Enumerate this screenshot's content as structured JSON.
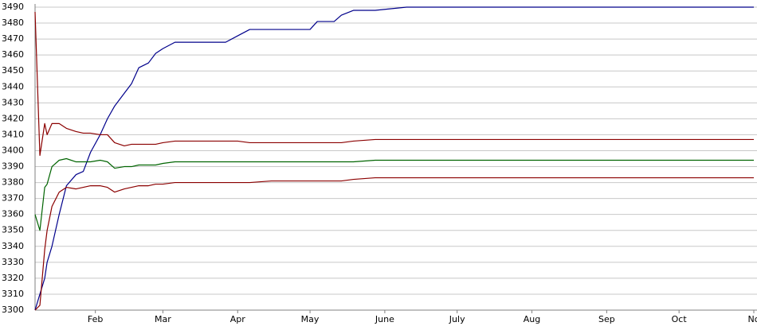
{
  "chart_data": {
    "type": "line",
    "x": [
      7,
      9,
      11,
      12,
      14,
      17,
      20,
      24,
      27,
      30,
      34,
      37,
      40,
      44,
      47,
      50,
      54,
      57,
      60,
      65,
      75,
      86,
      91,
      96,
      105,
      121,
      124,
      131,
      134,
      139,
      148,
      161,
      190,
      223,
      256,
      305
    ],
    "series": [
      {
        "color": "#00008b",
        "values": [
          3300,
          3310,
          3320,
          3330,
          3340,
          3360,
          3378,
          3385,
          3387,
          3399,
          3410,
          3420,
          3428,
          3436,
          3442,
          3452,
          3455,
          3461,
          3464,
          3468,
          3468,
          3468,
          3472,
          3476,
          3476,
          3476,
          3481,
          3481,
          3485,
          3488,
          3488,
          3490,
          3490,
          3490,
          3490,
          3490
        ]
      },
      {
        "color": "#8b0000",
        "values": [
          3487,
          3397,
          3417,
          3410,
          3417,
          3417,
          3414,
          3412,
          3411,
          3411,
          3410,
          3410,
          3405,
          3403,
          3404,
          3404,
          3404,
          3404,
          3405,
          3406,
          3406,
          3406,
          3406,
          3405,
          3405,
          3405,
          3405,
          3405,
          3405,
          3406,
          3407,
          3407,
          3407,
          3407,
          3407,
          3407
        ]
      },
      {
        "color": "#006400",
        "values": [
          3360,
          3350,
          3377,
          3379,
          3390,
          3394,
          3395,
          3393,
          3393,
          3393,
          3394,
          3393,
          3389,
          3390,
          3390,
          3391,
          3391,
          3391,
          3392,
          3393,
          3393,
          3393,
          3393,
          3393,
          3393,
          3393,
          3393,
          3393,
          3393,
          3393,
          3394,
          3394,
          3394,
          3394,
          3394,
          3394
        ]
      },
      {
        "color": "#8b0000",
        "values": [
          3300,
          3303,
          3338,
          3350,
          3365,
          3374,
          3377,
          3376,
          3377,
          3378,
          3378,
          3377,
          3374,
          3376,
          3377,
          3378,
          3378,
          3379,
          3379,
          3380,
          3380,
          3380,
          3380,
          3380,
          3381,
          3381,
          3381,
          3381,
          3381,
          3382,
          3383,
          3383,
          3383,
          3383,
          3383,
          3383
        ]
      }
    ],
    "xlim": [
      7,
      305
    ],
    "xticks": [
      {
        "value": 32,
        "label": "Feb"
      },
      {
        "value": 60,
        "label": "Mar"
      },
      {
        "value": 91,
        "label": "Apr"
      },
      {
        "value": 121,
        "label": "May"
      },
      {
        "value": 152,
        "label": "June"
      },
      {
        "value": 182,
        "label": "July"
      },
      {
        "value": 213,
        "label": "Aug"
      },
      {
        "value": 244,
        "label": "Sep"
      },
      {
        "value": 274,
        "label": "Oct"
      },
      {
        "value": 305,
        "label": "No"
      }
    ],
    "ylim": [
      3300,
      3490
    ],
    "yticks": [
      3300,
      3310,
      3320,
      3330,
      3340,
      3350,
      3360,
      3370,
      3380,
      3390,
      3400,
      3410,
      3420,
      3430,
      3440,
      3450,
      3460,
      3470,
      3480,
      3490
    ],
    "grid": true
  }
}
